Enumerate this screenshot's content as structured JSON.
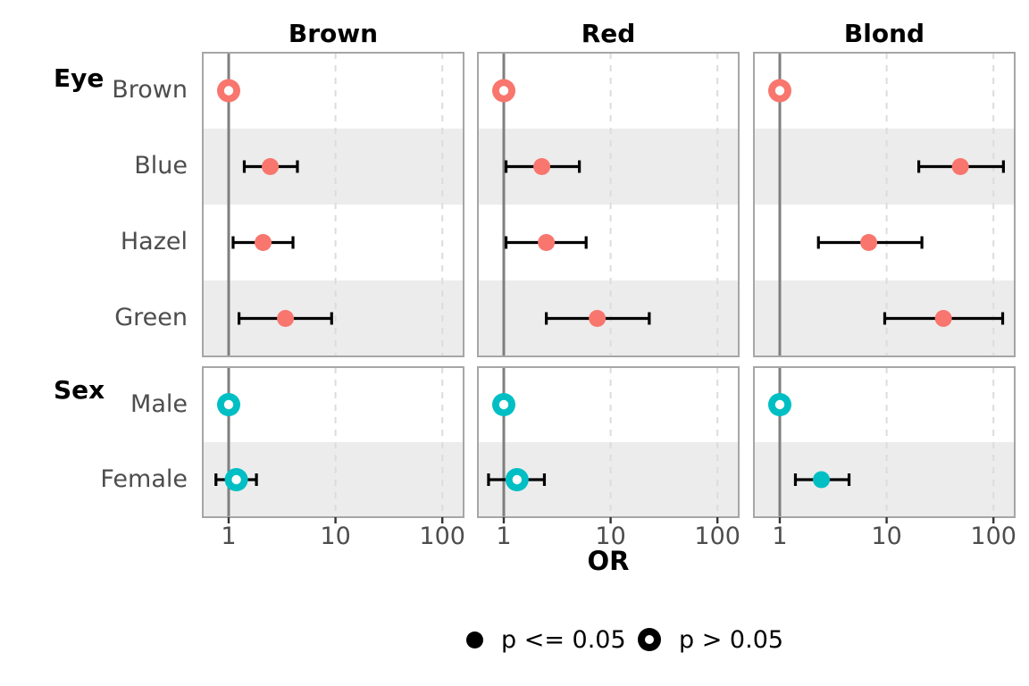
{
  "chart_data": {
    "type": "scatter",
    "subtype": "forest-plot",
    "title": "",
    "xlabel": "OR",
    "x_scale": "log10",
    "x_ticks": [
      1,
      10,
      100
    ],
    "x_tick_labels": [
      "1",
      "10",
      "100"
    ],
    "x_range_approx": [
      0.57,
      158
    ],
    "grid": "dashed-vertical-at-10-100",
    "reference_line_at": 1,
    "panels": [
      "Brown",
      "Red",
      "Blond"
    ],
    "groups": [
      {
        "name": "Eye",
        "rows": [
          "Brown",
          "Blue",
          "Hazel",
          "Green"
        ],
        "color": "#F8766D"
      },
      {
        "name": "Sex",
        "rows": [
          "Male",
          "Female"
        ],
        "color": "#00BFC4"
      }
    ],
    "legend": [
      {
        "label": "p <= 0.05",
        "marker": "filled"
      },
      {
        "label": "p > 0.05",
        "marker": "open"
      }
    ],
    "legend_position": "bottom-center",
    "colors": {
      "eye_points": "#F8766D",
      "sex_points": "#00BFC4",
      "error_bar": "#000000",
      "reference_line": "#7F7F7F",
      "gridline": "#DCDCDC",
      "panel_border": "#A6A6A6",
      "band_fill": "#ECECEC",
      "axis_text": "#4D4D4D",
      "title_text": "#000000",
      "tick_mark": "#333333"
    },
    "series": [
      {
        "panel": "Brown",
        "group": "Eye",
        "row": "Brown",
        "or": 1.0,
        "lo": null,
        "hi": null,
        "sig": false,
        "ref": true
      },
      {
        "panel": "Brown",
        "group": "Eye",
        "row": "Blue",
        "or": 2.45,
        "lo": 1.4,
        "hi": 4.4,
        "sig": true,
        "ref": false
      },
      {
        "panel": "Brown",
        "group": "Eye",
        "row": "Hazel",
        "or": 2.1,
        "lo": 1.1,
        "hi": 4.0,
        "sig": true,
        "ref": false
      },
      {
        "panel": "Brown",
        "group": "Eye",
        "row": "Green",
        "or": 3.4,
        "lo": 1.25,
        "hi": 9.2,
        "sig": true,
        "ref": false
      },
      {
        "panel": "Brown",
        "group": "Sex",
        "row": "Male",
        "or": 1.0,
        "lo": null,
        "hi": null,
        "sig": false,
        "ref": true
      },
      {
        "panel": "Brown",
        "group": "Sex",
        "row": "Female",
        "or": 1.18,
        "lo": 0.76,
        "hi": 1.82,
        "sig": false,
        "ref": false
      },
      {
        "panel": "Red",
        "group": "Eye",
        "row": "Brown",
        "or": 1.0,
        "lo": null,
        "hi": null,
        "sig": false,
        "ref": true
      },
      {
        "panel": "Red",
        "group": "Eye",
        "row": "Blue",
        "or": 2.27,
        "lo": 1.05,
        "hi": 5.1,
        "sig": true,
        "ref": false
      },
      {
        "panel": "Red",
        "group": "Eye",
        "row": "Hazel",
        "or": 2.5,
        "lo": 1.05,
        "hi": 5.9,
        "sig": true,
        "ref": false
      },
      {
        "panel": "Red",
        "group": "Eye",
        "row": "Green",
        "or": 7.5,
        "lo": 2.5,
        "hi": 23,
        "sig": true,
        "ref": false
      },
      {
        "panel": "Red",
        "group": "Sex",
        "row": "Male",
        "or": 1.0,
        "lo": null,
        "hi": null,
        "sig": false,
        "ref": true
      },
      {
        "panel": "Red",
        "group": "Sex",
        "row": "Female",
        "or": 1.33,
        "lo": 0.72,
        "hi": 2.4,
        "sig": false,
        "ref": false
      },
      {
        "panel": "Blond",
        "group": "Eye",
        "row": "Brown",
        "or": 1.0,
        "lo": null,
        "hi": null,
        "sig": false,
        "ref": true
      },
      {
        "panel": "Blond",
        "group": "Eye",
        "row": "Blue",
        "or": 49,
        "lo": 20,
        "hi": 124,
        "sig": true,
        "ref": false
      },
      {
        "panel": "Blond",
        "group": "Eye",
        "row": "Hazel",
        "or": 6.8,
        "lo": 2.3,
        "hi": 21.4,
        "sig": true,
        "ref": false
      },
      {
        "panel": "Blond",
        "group": "Eye",
        "row": "Green",
        "or": 34,
        "lo": 9.6,
        "hi": 122,
        "sig": true,
        "ref": false
      },
      {
        "panel": "Blond",
        "group": "Sex",
        "row": "Male",
        "or": 1.0,
        "lo": null,
        "hi": null,
        "sig": false,
        "ref": true
      },
      {
        "panel": "Blond",
        "group": "Sex",
        "row": "Female",
        "or": 2.45,
        "lo": 1.4,
        "hi": 4.45,
        "sig": true,
        "ref": false
      }
    ]
  }
}
